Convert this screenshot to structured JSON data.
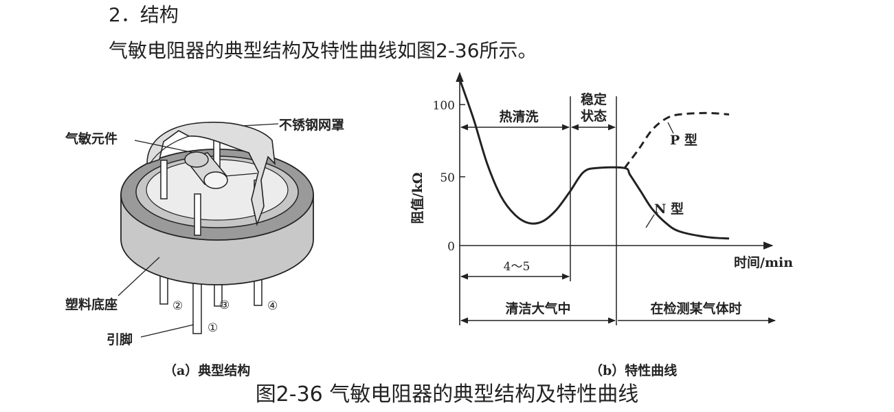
{
  "section_heading": "2．结构",
  "intro_text": "气敏电阻器的典型结构及特性曲线如图2-36所示。",
  "figure_caption": "图2-36 气敏电阻器的典型结构及特性曲线",
  "structure": {
    "sub_caption": "（a）典型结构",
    "labels": {
      "mesh_cover": "不锈钢网罩",
      "gas_element": "气敏元件",
      "plastic_base": "塑料底座",
      "pins": "引脚"
    },
    "pin_numbers": [
      "①",
      "②",
      "③",
      "④"
    ]
  },
  "characteristic": {
    "sub_caption": "（b）特性曲线",
    "y_axis_label": "阻值/kΩ",
    "x_axis_label": "时间/min",
    "y_ticks": [
      "100",
      "50",
      "0"
    ],
    "phase_labels": {
      "hot_cleaning": "热清洗",
      "stable": "稳定状态",
      "stable_line1": "稳定",
      "stable_line2": "状态",
      "duration": "4～5",
      "clean_air": "清洁大气中",
      "detecting": "在检测某气体时"
    },
    "curve_labels": {
      "p_type": "P 型",
      "n_type": "N 型"
    }
  },
  "chart_data": {
    "type": "line",
    "xlabel": "时间/min",
    "ylabel": "阻值/kΩ",
    "y_ticks": [
      0,
      50,
      100
    ],
    "ylim": [
      0,
      120
    ],
    "grid": false,
    "series": [
      {
        "name": "N 型",
        "style": "solid",
        "points": [
          [
            0.0,
            118
          ],
          [
            0.5,
            90
          ],
          [
            1.0,
            58
          ],
          [
            1.5,
            35
          ],
          [
            2.0,
            22
          ],
          [
            2.5,
            16
          ],
          [
            3.0,
            17
          ],
          [
            3.5,
            25
          ],
          [
            4.0,
            38
          ],
          [
            4.5,
            52
          ],
          [
            5.0,
            55
          ],
          [
            6.0,
            55
          ],
          [
            6.2,
            50
          ],
          [
            6.6,
            38
          ],
          [
            7.0,
            26
          ],
          [
            7.5,
            16
          ],
          [
            8.0,
            10
          ],
          [
            9.0,
            6
          ],
          [
            9.8,
            5
          ]
        ]
      },
      {
        "name": "P 型",
        "style": "dashed",
        "points": [
          [
            6.0,
            55
          ],
          [
            6.5,
            68
          ],
          [
            7.0,
            82
          ],
          [
            7.5,
            90
          ],
          [
            8.0,
            93
          ],
          [
            9.0,
            94
          ],
          [
            9.8,
            93
          ]
        ]
      }
    ]
  },
  "colors": {
    "ink": "#222222",
    "base_top": "#9a9a9a",
    "base_side": "#c8c8c8",
    "mesh": "#dedede",
    "background": "#ffffff"
  }
}
